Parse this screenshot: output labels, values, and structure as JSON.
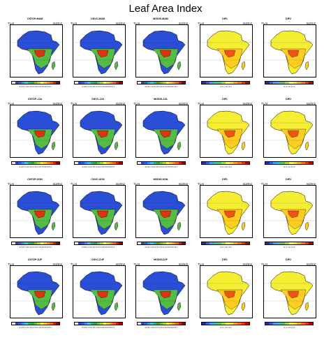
{
  "title": "Leaf Area Index",
  "units": {
    "left": "TLAI",
    "right": "m2/m2"
  },
  "lai_ticks": "0 0.5 1 1.5 2 2.5 3 3.5 4 4.5 5 5.5 6 6.5 7",
  "diff_ticks": "-3 -2 -1 0 1 2 3",
  "lai_colors": [
    "#f0f0f0",
    "#3344bb",
    "#2266ee",
    "#3399ff",
    "#33ccee",
    "#22bb88",
    "#33aa33",
    "#66cc33",
    "#aadd22",
    "#ffff33",
    "#ffcc22",
    "#ff9922",
    "#ff6611",
    "#dd2200",
    "#990000"
  ],
  "diff_colors": [
    "#2233aa",
    "#3366dd",
    "#33aaff",
    "#33ccaa",
    "#55cc55",
    "#aadd33",
    "#ffff44",
    "#ffdd33",
    "#ffaa22",
    "#ff7711",
    "#ee3311",
    "#bb0000"
  ],
  "rows": [
    {
      "panels": [
        {
          "title": "CNTOP-MAM",
          "kind": "lai"
        },
        {
          "title": "CNVC-MAM",
          "kind": "lai"
        },
        {
          "title": "MODIS-MAM",
          "kind": "lai"
        },
        {
          "title": "DIF1",
          "kind": "diff"
        },
        {
          "title": "DIF2",
          "kind": "diff"
        }
      ]
    },
    {
      "panels": [
        {
          "title": "CNTOP-JJA",
          "kind": "lai"
        },
        {
          "title": "CNVC-JJA",
          "kind": "lai"
        },
        {
          "title": "MODIS-JJA",
          "kind": "lai"
        },
        {
          "title": "DIF1",
          "kind": "diff"
        },
        {
          "title": "DIF2",
          "kind": "diff"
        }
      ]
    },
    {
      "panels": [
        {
          "title": "CNTOP-SON",
          "kind": "lai"
        },
        {
          "title": "CNVC-SON",
          "kind": "lai"
        },
        {
          "title": "MODIS-SON",
          "kind": "lai"
        },
        {
          "title": "DIF1",
          "kind": "diff"
        },
        {
          "title": "DIF2",
          "kind": "diff"
        }
      ]
    },
    {
      "panels": [
        {
          "title": "CNTOP-DJF",
          "kind": "lai"
        },
        {
          "title": "CNVC-DJF",
          "kind": "lai"
        },
        {
          "title": "MODIS-DJF",
          "kind": "lai"
        },
        {
          "title": "DIF1",
          "kind": "diff"
        },
        {
          "title": "DIF2",
          "kind": "diff"
        }
      ]
    }
  ]
}
